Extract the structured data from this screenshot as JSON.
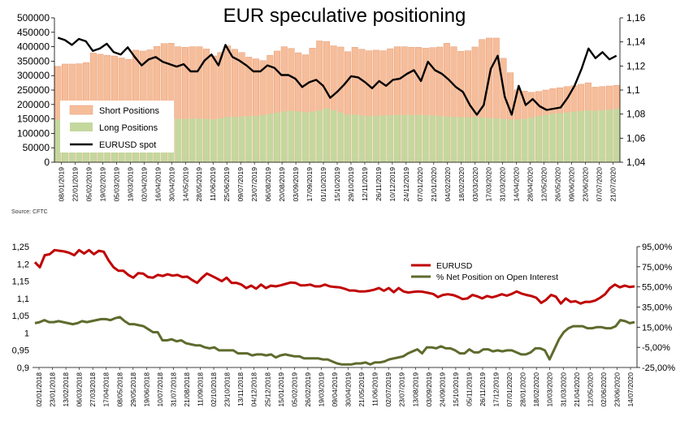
{
  "page": {
    "source_label": "Source: CFTC"
  },
  "chart_data": [
    {
      "type": "bar",
      "title": "EUR speculative positioning",
      "legend": {
        "placement": "bottom-left"
      },
      "y_left": {
        "min": 0,
        "max": 500000,
        "step": 50000
      },
      "y_right": {
        "min": 1.04,
        "max": 1.16,
        "step": 0.02
      },
      "left_tick_labels": [
        "0",
        "50000",
        "100000",
        "150000",
        "200000",
        "250000",
        "300000",
        "350000",
        "400000",
        "450000",
        "500000"
      ],
      "right_tick_labels": [
        "1,04",
        "1,06",
        "1,08",
        "1,1",
        "1,12",
        "1,14",
        "1,16"
      ],
      "x_labels": [
        "08/01/2019",
        "22/01/2019",
        "05/02/2019",
        "19/02/2019",
        "05/03/2019",
        "19/03/2019",
        "02/04/2019",
        "16/04/2019",
        "30/04/2019",
        "14/05/2019",
        "28/05/2019",
        "11/06/2019",
        "25/06/2019",
        "09/07/2019",
        "23/07/2019",
        "06/08/2019",
        "20/08/2019",
        "03/09/2019",
        "17/09/2019",
        "01/10/2019",
        "15/10/2019",
        "29/10/2019",
        "12/11/2019",
        "26/11/2019",
        "10/12/2019",
        "24/12/2019",
        "07/01/2020",
        "21/01/2020",
        "04/02/2020",
        "18/02/2020",
        "03/03/2020",
        "17/03/2020",
        "31/03/2020",
        "14/04/2020",
        "28/04/2020",
        "12/05/2020",
        "26/05/2020",
        "09/06/2020",
        "23/06/2020",
        "07/07/2020",
        "21/07/2020"
      ],
      "series": [
        {
          "name": "Short Positions",
          "color": "#f6bd9a",
          "edge": "#e59a70",
          "values": [
            332000,
            340000,
            340000,
            341000,
            345000,
            378000,
            374000,
            370000,
            368000,
            361000,
            356000,
            388000,
            385000,
            389000,
            401000,
            411000,
            412000,
            400000,
            398000,
            400000,
            400000,
            392000,
            368000,
            380000,
            403000,
            391000,
            380000,
            364000,
            358000,
            352000,
            370000,
            385000,
            400000,
            394000,
            379000,
            372000,
            395000,
            420000,
            418000,
            403000,
            399000,
            383000,
            398000,
            391000,
            386000,
            388000,
            386000,
            393000,
            400000,
            400000,
            398000,
            398000,
            395000,
            397000,
            399000,
            412000,
            400000,
            384000,
            386000,
            399000,
            425000,
            430000,
            430000,
            360000,
            310000,
            251000,
            246000,
            242000,
            245000,
            250000,
            255000,
            258000,
            262000,
            265000,
            270000,
            275000,
            260000,
            262000,
            264000,
            266000
          ]
        },
        {
          "name": "Long Positions",
          "color": "#c4d89e",
          "values": [
            148000,
            150000,
            150000,
            150000,
            152000,
            153000,
            152000,
            150000,
            149000,
            149000,
            150000,
            152000,
            152000,
            153000,
            154000,
            153000,
            151000,
            150000,
            150000,
            151000,
            151000,
            150000,
            148000,
            152000,
            157000,
            157000,
            158000,
            160000,
            160000,
            163000,
            168000,
            172000,
            176000,
            178000,
            176000,
            173000,
            175000,
            180000,
            186000,
            180000,
            172000,
            165000,
            165000,
            162000,
            160000,
            161000,
            162000,
            163000,
            164000,
            164000,
            164000,
            164000,
            163000,
            162000,
            160000,
            158000,
            157000,
            156000,
            156000,
            156000,
            155000,
            153000,
            152000,
            150000,
            148000,
            148000,
            150000,
            155000,
            160000,
            165000,
            168000,
            170000,
            172000,
            175000,
            178000,
            180000,
            178000,
            180000,
            182000,
            185000
          ]
        },
        {
          "name": "EURUSD spot",
          "color": "#000000",
          "values": [
            1.1435,
            1.1415,
            1.1375,
            1.1425,
            1.1405,
            1.1325,
            1.1345,
            1.1385,
            1.1315,
            1.1295,
            1.1355,
            1.1275,
            1.1205,
            1.1255,
            1.1275,
            1.1235,
            1.1215,
            1.1195,
            1.1215,
            1.1155,
            1.1155,
            1.1245,
            1.1295,
            1.1205,
            1.1375,
            1.1275,
            1.1245,
            1.1205,
            1.1155,
            1.1155,
            1.1205,
            1.1185,
            1.1125,
            1.1125,
            1.1095,
            1.1025,
            1.1065,
            1.1085,
            1.1035,
            1.0935,
            1.0985,
            1.1045,
            1.1115,
            1.1105,
            1.1065,
            1.1015,
            1.1075,
            1.1035,
            1.1085,
            1.1095,
            1.1135,
            1.1165,
            1.1075,
            1.1235,
            1.1165,
            1.1135,
            1.1085,
            1.1025,
            1.0985,
            1.0875,
            1.0795,
            1.0875,
            1.1175,
            1.1285,
            1.0945,
            1.0795,
            1.1035,
            1.0875,
            1.0925,
            1.0865,
            1.0835,
            1.0845,
            1.0855,
            1.0935,
            1.1035,
            1.1175,
            1.1345,
            1.1265,
            1.1315,
            1.1255,
            1.1285
          ]
        }
      ]
    },
    {
      "type": "line",
      "legend": {
        "placement": "top-right"
      },
      "y_left": {
        "min": 0.9,
        "max": 1.25,
        "step": 0.05
      },
      "y_right": {
        "min": -25,
        "max": 95,
        "step": 20
      },
      "left_tick_labels": [
        "0,9",
        "0,95",
        "1",
        "1,05",
        "1,1",
        "1,15",
        "1,2",
        "1,25"
      ],
      "right_tick_labels": [
        "-25,00%",
        "-5,00%",
        "15,00%",
        "35,00%",
        "55,00%",
        "75,00%",
        "95,00%"
      ],
      "x_labels": [
        "02/01/2018",
        "23/01/2018",
        "13/02/2018",
        "06/03/2018",
        "27/03/2018",
        "17/04/2018",
        "08/05/2018",
        "29/05/2018",
        "19/06/2018",
        "10/07/2018",
        "31/07/2018",
        "21/08/2018",
        "11/09/2018",
        "02/10/2018",
        "23/10/2018",
        "13/11/2018",
        "04/12/2018",
        "25/12/2018",
        "15/01/2019",
        "05/02/2019",
        "26/02/2019",
        "19/03/2019",
        "09/04/2019",
        "30/04/2019",
        "21/05/2019",
        "11/06/2019",
        "02/07/2019",
        "23/07/2019",
        "13/08/2019",
        "03/09/2019",
        "24/09/2019",
        "15/10/2019",
        "05/11/2019",
        "26/11/2019",
        "17/12/2019",
        "07/01/2020",
        "28/01/2020",
        "18/02/2020",
        "10/03/2020",
        "31/03/2020",
        "21/04/2020",
        "12/05/2020",
        "02/06/2020",
        "23/06/2020",
        "14/07/2020"
      ],
      "series": [
        {
          "name": "EURUSD",
          "color": "#c00000",
          "values": [
            1.205,
            1.19,
            1.225,
            1.228,
            1.24,
            1.238,
            1.236,
            1.232,
            1.225,
            1.24,
            1.23,
            1.24,
            1.228,
            1.238,
            1.235,
            1.21,
            1.19,
            1.18,
            1.18,
            1.168,
            1.16,
            1.173,
            1.172,
            1.162,
            1.16,
            1.168,
            1.165,
            1.17,
            1.166,
            1.168,
            1.162,
            1.163,
            1.153,
            1.145,
            1.16,
            1.172,
            1.165,
            1.158,
            1.15,
            1.16,
            1.145,
            1.145,
            1.14,
            1.13,
            1.137,
            1.128,
            1.14,
            1.13,
            1.137,
            1.135,
            1.138,
            1.142,
            1.146,
            1.145,
            1.138,
            1.138,
            1.14,
            1.135,
            1.135,
            1.14,
            1.135,
            1.133,
            1.132,
            1.128,
            1.123,
            1.123,
            1.12,
            1.12,
            1.122,
            1.125,
            1.13,
            1.122,
            1.13,
            1.118,
            1.13,
            1.12,
            1.117,
            1.119,
            1.12,
            1.119,
            1.116,
            1.113,
            1.104,
            1.11,
            1.112,
            1.11,
            1.105,
            1.098,
            1.1,
            1.11,
            1.106,
            1.1,
            1.107,
            1.103,
            1.107,
            1.112,
            1.108,
            1.113,
            1.12,
            1.114,
            1.11,
            1.107,
            1.102,
            1.087,
            1.096,
            1.11,
            1.105,
            1.085,
            1.1,
            1.09,
            1.092,
            1.085,
            1.09,
            1.09,
            1.094,
            1.102,
            1.112,
            1.13,
            1.14,
            1.132,
            1.137,
            1.133,
            1.135
          ]
        },
        {
          "name": "% Net Position on Open Interest",
          "color": "#5e6b2d",
          "values": [
            19,
            20,
            22,
            20,
            20,
            21,
            20,
            19,
            18,
            19,
            21,
            20,
            21,
            22,
            23,
            23,
            22,
            24,
            25,
            21,
            18,
            18,
            17,
            16,
            13,
            10,
            10,
            2,
            2,
            3,
            1,
            2,
            -1,
            -2,
            -3,
            -3,
            -5,
            -6,
            -5,
            -8,
            -8,
            -8,
            -8,
            -11,
            -11,
            -11,
            -13,
            -12,
            -12,
            -13,
            -12,
            -15,
            -13,
            -12,
            -13,
            -14,
            -14,
            -16,
            -16,
            -16,
            -16,
            -17,
            -17,
            -19,
            -21,
            -22,
            -22,
            -22,
            -21,
            -21,
            -20,
            -22,
            -20,
            -20,
            -19,
            -17,
            -16,
            -15,
            -14,
            -11,
            -9,
            -7,
            -11,
            -5,
            -5,
            -6,
            -4,
            -6,
            -6,
            -8,
            -11,
            -11,
            -7,
            -10,
            -10,
            -7,
            -7,
            -9,
            -8,
            -9,
            -8,
            -8,
            -10,
            -12,
            -12,
            -10,
            -6,
            -6,
            -8,
            -17,
            -7,
            3,
            10,
            14,
            16,
            16,
            16,
            14,
            14,
            15,
            15,
            14,
            14,
            16,
            22,
            21,
            19,
            20
          ]
        }
      ]
    }
  ]
}
